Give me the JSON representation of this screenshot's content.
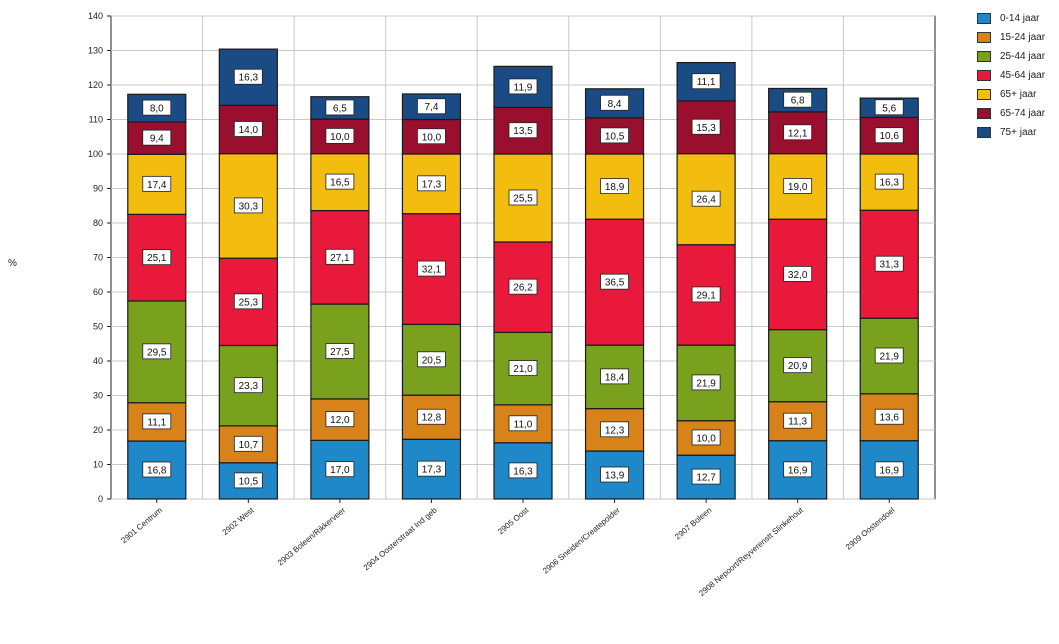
{
  "chart_data": {
    "type": "bar",
    "stacked": true,
    "ylabel": "%",
    "ylim": [
      0,
      140
    ],
    "yticks": [
      0,
      10,
      20,
      30,
      40,
      50,
      60,
      70,
      80,
      90,
      100,
      110,
      120,
      130,
      140
    ],
    "grid": true,
    "legend_position": "top-right",
    "categories": [
      "2901 Centrum",
      "2902 West",
      "2903 Boleen/Rikkerveer",
      "2904 Oosterstraat Ind geb",
      "2905 Oost",
      "2906 Sneiden/Createpolder",
      "2907 Boleen",
      "2908 Nepoort/Reyverenstt Slinkehout",
      "2909 Oostendoel"
    ],
    "series": [
      {
        "name": "0-14 jaar",
        "color": "#1e88c8",
        "values": [
          16.8,
          10.5,
          17.0,
          17.3,
          16.3,
          13.9,
          12.7,
          16.9,
          16.9
        ],
        "labels": [
          "16,8",
          "10,5",
          "17,0",
          "17,3",
          "16,3",
          "13,9",
          "12,7",
          "16,9",
          "16,9"
        ]
      },
      {
        "name": "15-24 jaar",
        "color": "#d8831a",
        "values": [
          11.1,
          10.7,
          12.0,
          12.8,
          11.0,
          12.3,
          10.0,
          11.3,
          13.6
        ],
        "labels": [
          "11,1",
          "10,7",
          "12,0",
          "12,8",
          "11,0",
          "12,3",
          "10,0",
          "11,3",
          "13,6"
        ]
      },
      {
        "name": "25-44 jaar",
        "color": "#7aa11e",
        "values": [
          29.5,
          23.3,
          27.5,
          20.5,
          21.0,
          18.4,
          21.9,
          20.9,
          21.9
        ],
        "labels": [
          "29,5",
          "23,3",
          "27,5",
          "20,5",
          "21,0",
          "18,4",
          "21,9",
          "20,9",
          "21,9"
        ]
      },
      {
        "name": "45-64 jaar",
        "color": "#e8193a",
        "values": [
          25.1,
          25.3,
          27.1,
          32.1,
          26.2,
          36.5,
          29.1,
          32.0,
          31.3
        ],
        "labels": [
          "25,1",
          "25,3",
          "27,1",
          "32,1",
          "26,2",
          "36,5",
          "29,1",
          "32,0",
          "31,3"
        ]
      },
      {
        "name": "65+ jaar",
        "color": "#f2bd0f",
        "values": [
          17.4,
          30.3,
          16.5,
          17.3,
          25.5,
          18.9,
          26.4,
          19.0,
          16.3
        ],
        "labels": [
          "17,4",
          "30,3",
          "16,5",
          "17,3",
          "25,5",
          "18,9",
          "26,4",
          "19,0",
          "16,3"
        ]
      },
      {
        "name": "65-74 jaar",
        "color": "#9a0f2e",
        "values": [
          9.4,
          14.0,
          10.0,
          10.0,
          13.5,
          10.5,
          15.3,
          12.1,
          10.6
        ],
        "labels": [
          "9,4",
          "14,0",
          "10,0",
          "10,0",
          "13,5",
          "10,5",
          "15,3",
          "12,1",
          "10,6"
        ]
      },
      {
        "name": "75+ jaar",
        "color": "#1a4b84",
        "values": [
          8.0,
          16.3,
          6.5,
          7.4,
          11.9,
          8.4,
          11.1,
          6.8,
          5.6
        ],
        "labels": [
          "8,0",
          "16,3",
          "6,5",
          "7,4",
          "11,9",
          "8,4",
          "11,1",
          "6,8",
          "5,6"
        ]
      }
    ]
  }
}
